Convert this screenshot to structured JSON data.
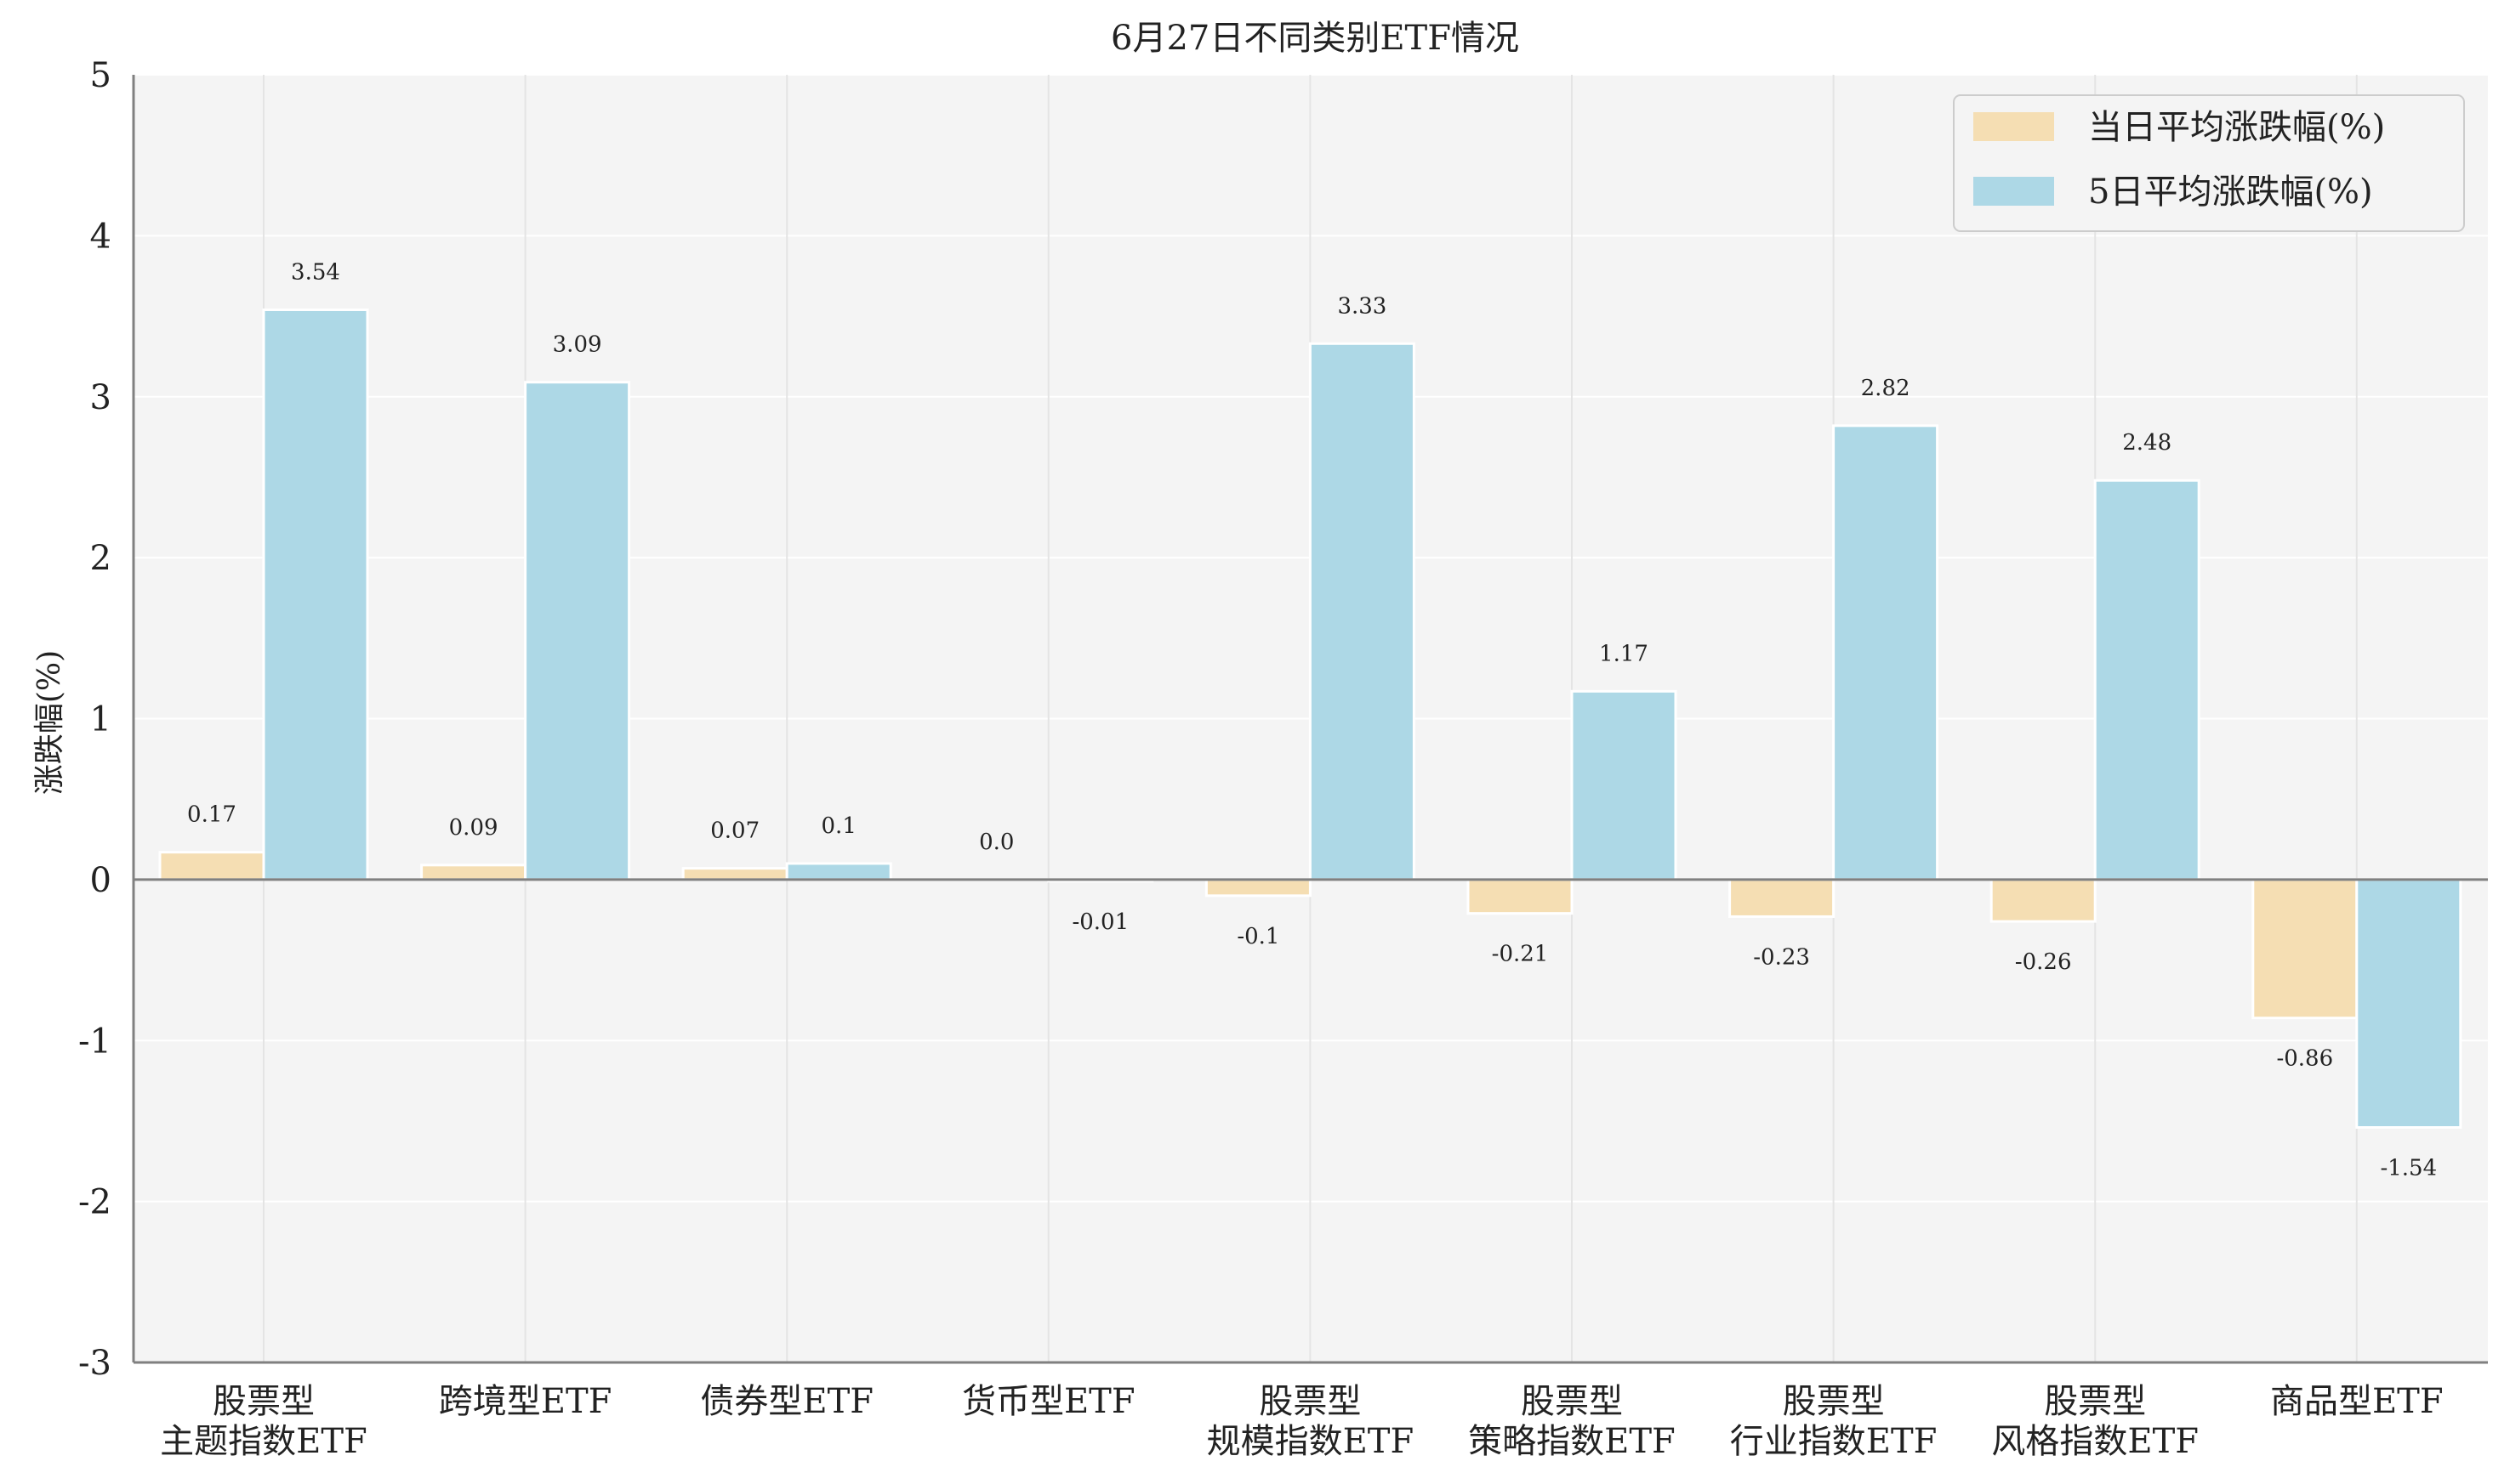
{
  "chart_data": {
    "type": "bar",
    "title": "6月27日不同类别ETF情况",
    "xlabel": "",
    "ylabel": "涨跌幅(%)",
    "ylim": [
      -3,
      5
    ],
    "yticks": [
      "-3",
      "-2",
      "-1",
      "0",
      "1",
      "2",
      "3",
      "4",
      "5"
    ],
    "grid": true,
    "legend_position": "top-right",
    "categories": [
      [
        "股票型",
        "主题指数ETF"
      ],
      [
        "跨境型ETF"
      ],
      [
        "债券型ETF"
      ],
      [
        "货币型ETF"
      ],
      [
        "股票型",
        "规模指数ETF"
      ],
      [
        "股票型",
        "策略指数ETF"
      ],
      [
        "股票型",
        "行业指数ETF"
      ],
      [
        "股票型",
        "风格指数ETF"
      ],
      [
        "商品型ETF"
      ]
    ],
    "series": [
      {
        "name": "当日平均涨跌幅(%)",
        "color": "#f5deb3",
        "values": [
          0.17,
          0.09,
          0.07,
          0.0,
          -0.1,
          -0.21,
          -0.23,
          -0.26,
          -0.86
        ],
        "labels": [
          "0.17",
          "0.09",
          "0.07",
          "0.0",
          "-0.1",
          "-0.21",
          "-0.23",
          "-0.26",
          "-0.86"
        ]
      },
      {
        "name": "5日平均涨跌幅(%)",
        "color": "#add8e6",
        "values": [
          3.54,
          3.09,
          0.1,
          -0.01,
          3.33,
          1.17,
          2.82,
          2.48,
          -1.54
        ],
        "labels": [
          "3.54",
          "3.09",
          "0.1",
          "-0.01",
          "3.33",
          "1.17",
          "2.82",
          "2.48",
          "-1.54"
        ]
      }
    ]
  }
}
